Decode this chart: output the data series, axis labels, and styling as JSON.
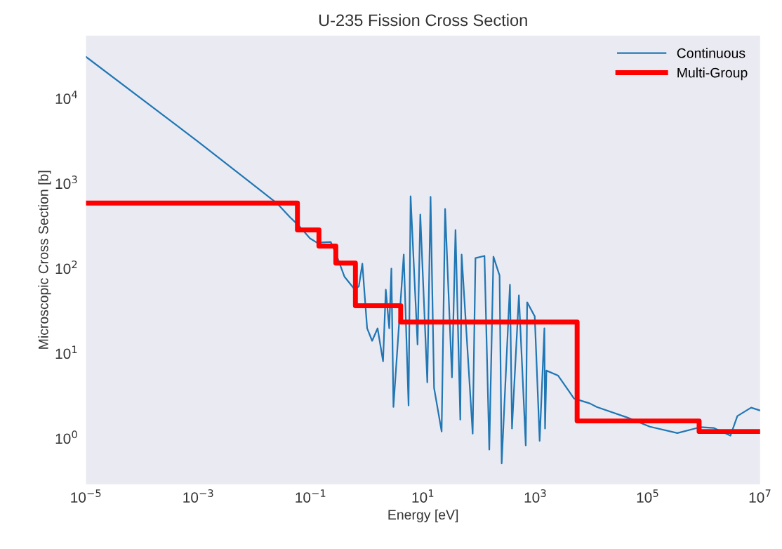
{
  "chart_data": {
    "type": "line",
    "title": "U-235 Fission Cross Section",
    "xlabel": "Energy [eV]",
    "ylabel": "Microscopic Cross Section [b]",
    "log": "xy",
    "grid": false,
    "legend": "top right",
    "xlim": [
      1e-05,
      10000000.0
    ],
    "ylim": [
      0.29,
      55000
    ],
    "xticks": [
      {
        "value": 1e-05,
        "label": "10$^{−5}$"
      },
      {
        "value": 0.001,
        "label": "10$^{−3}$"
      },
      {
        "value": 0.1,
        "label": "10$^{−1}$"
      },
      {
        "value": 10,
        "label": "10$^{1}$"
      },
      {
        "value": 1000,
        "label": "10$^{3}$"
      },
      {
        "value": 100000,
        "label": "10$^{5}$"
      },
      {
        "value": 10000000,
        "label": "10$^{7}$"
      }
    ],
    "yticks": [
      {
        "value": 1,
        "label": "10$^{0}$"
      },
      {
        "value": 10,
        "label": "10$^{1}$"
      },
      {
        "value": 100,
        "label": "10$^{2}$"
      },
      {
        "value": 1000,
        "label": "10$^{3}$"
      },
      {
        "value": 10000,
        "label": "10$^{4}$"
      }
    ],
    "series": [
      {
        "name": "Continuous",
        "color": "#2077b4",
        "x": [
          1e-05,
          0.001,
          0.0251,
          0.0429,
          0.06,
          0.097,
          0.129,
          0.227,
          0.301,
          0.4,
          0.61,
          0.72,
          0.83,
          1.01,
          1.24,
          1.55,
          1.94,
          2.17,
          2.5,
          2.73,
          2.97,
          4.53,
          5.52,
          6.0,
          7.98,
          8.93,
          11.9,
          13.6,
          15.7,
          21.4,
          24.7,
          32.7,
          37.8,
          46,
          48.6,
          76.4,
          85.7,
          124,
          151,
          179,
          230,
          251,
          352,
          383,
          508,
          673,
          713,
          973,
          1190,
          1445,
          1485,
          1570,
          2540,
          3990,
          4860,
          9310,
          12400,
          42900,
          109000,
          337000,
          857000,
          1510000,
          2960000,
          3940000,
          6920000,
          10000000
        ],
        "values": [
          31000,
          3100,
          587,
          401,
          325,
          227,
          202,
          206,
          133,
          80,
          56.5,
          62,
          114,
          19.8,
          14.1,
          19.8,
          8.1,
          56.5,
          19.8,
          100,
          2.35,
          146,
          2.45,
          710,
          12.8,
          433,
          4.58,
          697,
          3.94,
          1.21,
          504,
          5.24,
          285,
          1.67,
          146,
          1.14,
          133,
          141,
          0.74,
          138,
          83,
          0.51,
          64.5,
          1.31,
          48.5,
          0.83,
          40.1,
          27.4,
          0.94,
          19.8,
          1.31,
          6.3,
          5.5,
          3.58,
          2.96,
          2.59,
          2.35,
          1.77,
          1.38,
          1.16,
          1.36,
          1.33,
          1.08,
          1.84,
          2.31,
          2.14
        ]
      },
      {
        "name": "Multi-Group",
        "type": "step",
        "color": "#ff0000",
        "x": [
          1e-05,
          0.058,
          0.14,
          0.28,
          0.625,
          4,
          5530,
          821000,
          10000000
        ],
        "values": [
          589,
          285,
          184,
          116,
          36.5,
          23.5,
          1.61,
          1.21,
          1.21
        ]
      }
    ]
  }
}
